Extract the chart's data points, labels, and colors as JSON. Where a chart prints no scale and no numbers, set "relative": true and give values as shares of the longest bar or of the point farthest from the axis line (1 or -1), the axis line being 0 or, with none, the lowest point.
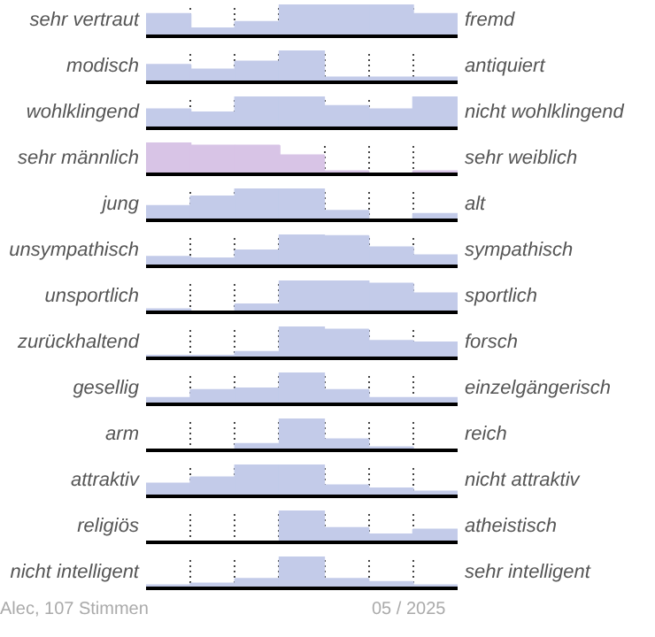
{
  "chart_data": [
    {
      "type": "bar",
      "relative": true,
      "ylabel": "sehr vertraut",
      "y2label": "fremd",
      "categories": [
        null,
        null,
        null,
        null,
        null,
        null,
        null
      ],
      "values": [
        0.7,
        0.25,
        0.45,
        1.0,
        1.0,
        1.0,
        0.7
      ],
      "color": "#c3cbe9",
      "grid": "x"
    },
    {
      "type": "bar",
      "relative": true,
      "ylabel": "modisch",
      "y2label": "antiquiert",
      "categories": [
        null,
        null,
        null,
        null,
        null,
        null,
        null
      ],
      "values": [
        0.55,
        0.4,
        0.65,
        1.0,
        0.15,
        0.15,
        0.15
      ],
      "color": "#c3cbe9",
      "grid": "x"
    },
    {
      "type": "bar",
      "relative": true,
      "ylabel": "wohlklingend",
      "y2label": "nicht wohlklingend",
      "categories": [
        null,
        null,
        null,
        null,
        null,
        null,
        null
      ],
      "values": [
        0.6,
        0.5,
        1.0,
        1.0,
        0.7,
        0.6,
        1.0
      ],
      "color": "#c3cbe9",
      "grid": "x"
    },
    {
      "type": "bar",
      "relative": true,
      "ylabel": "sehr männlich",
      "y2label": "sehr weiblich",
      "categories": [
        null,
        null,
        null,
        null,
        null,
        null,
        null
      ],
      "values": [
        1.0,
        0.9,
        0.9,
        0.6,
        0.1,
        0,
        0.1
      ],
      "color": "#d8c4e6",
      "grid": "x"
    },
    {
      "type": "bar",
      "relative": true,
      "ylabel": "jung",
      "y2label": "alt",
      "categories": [
        null,
        null,
        null,
        null,
        null,
        null,
        null
      ],
      "values": [
        0.45,
        0.75,
        1.0,
        1.0,
        0.3,
        0,
        0.2
      ],
      "color": "#c3cbe9",
      "grid": "x"
    },
    {
      "type": "bar",
      "relative": true,
      "ylabel": "unsympathisch",
      "y2label": "sympathisch",
      "categories": [
        null,
        null,
        null,
        null,
        null,
        null,
        null
      ],
      "values": [
        0.3,
        0.25,
        0.5,
        1.0,
        0.95,
        0.6,
        0.35
      ],
      "color": "#c3cbe9",
      "grid": "x"
    },
    {
      "type": "bar",
      "relative": true,
      "ylabel": "unsportlich",
      "y2label": "sportlich",
      "categories": [
        null,
        null,
        null,
        null,
        null,
        null,
        null
      ],
      "values": [
        0.1,
        0.03,
        0.25,
        1.0,
        1.0,
        0.9,
        0.6
      ],
      "color": "#c3cbe9",
      "grid": "x"
    },
    {
      "type": "bar",
      "relative": true,
      "ylabel": "zurückhaltend",
      "y2label": "forsch",
      "categories": [
        null,
        null,
        null,
        null,
        null,
        null,
        null
      ],
      "values": [
        0.08,
        0.08,
        0.2,
        1.0,
        0.9,
        0.55,
        0.5
      ],
      "color": "#c3cbe9",
      "grid": "x"
    },
    {
      "type": "bar",
      "relative": true,
      "ylabel": "gesellig",
      "y2label": "einzelgängerisch",
      "categories": [
        null,
        null,
        null,
        null,
        null,
        null,
        null
      ],
      "values": [
        0.2,
        0.45,
        0.5,
        1.0,
        0.45,
        0.2,
        0.2
      ],
      "color": "#c3cbe9",
      "grid": "x"
    },
    {
      "type": "bar",
      "relative": true,
      "ylabel": "arm",
      "y2label": "reich",
      "categories": [
        null,
        null,
        null,
        null,
        null,
        null,
        null
      ],
      "values": [
        0,
        0,
        0.2,
        1.0,
        0.35,
        0.1,
        0
      ],
      "color": "#c3cbe9",
      "grid": "x"
    },
    {
      "type": "bar",
      "relative": true,
      "ylabel": "attraktiv",
      "y2label": "nicht attraktiv",
      "categories": [
        null,
        null,
        null,
        null,
        null,
        null,
        null
      ],
      "values": [
        0.4,
        0.6,
        1.0,
        1.0,
        0.35,
        0.25,
        0.15
      ],
      "color": "#c3cbe9",
      "grid": "x"
    },
    {
      "type": "bar",
      "relative": true,
      "ylabel": "religiös",
      "y2label": "atheistisch",
      "categories": [
        null,
        null,
        null,
        null,
        null,
        null,
        null
      ],
      "values": [
        0,
        0,
        0,
        1.0,
        0.45,
        0.25,
        0.4
      ],
      "color": "#c3cbe9",
      "grid": "x"
    },
    {
      "type": "bar",
      "relative": true,
      "ylabel": "nicht intelligent",
      "y2label": "sehr intelligent",
      "categories": [
        null,
        null,
        null,
        null,
        null,
        null,
        null
      ],
      "values": [
        0.1,
        0.15,
        0.3,
        1.0,
        0.3,
        0.2,
        0.1
      ],
      "color": "#c3cbe9",
      "grid": "x",
      "annotations": [
        "Alec, 107 Stimmen",
        "05 / 2025"
      ]
    }
  ]
}
